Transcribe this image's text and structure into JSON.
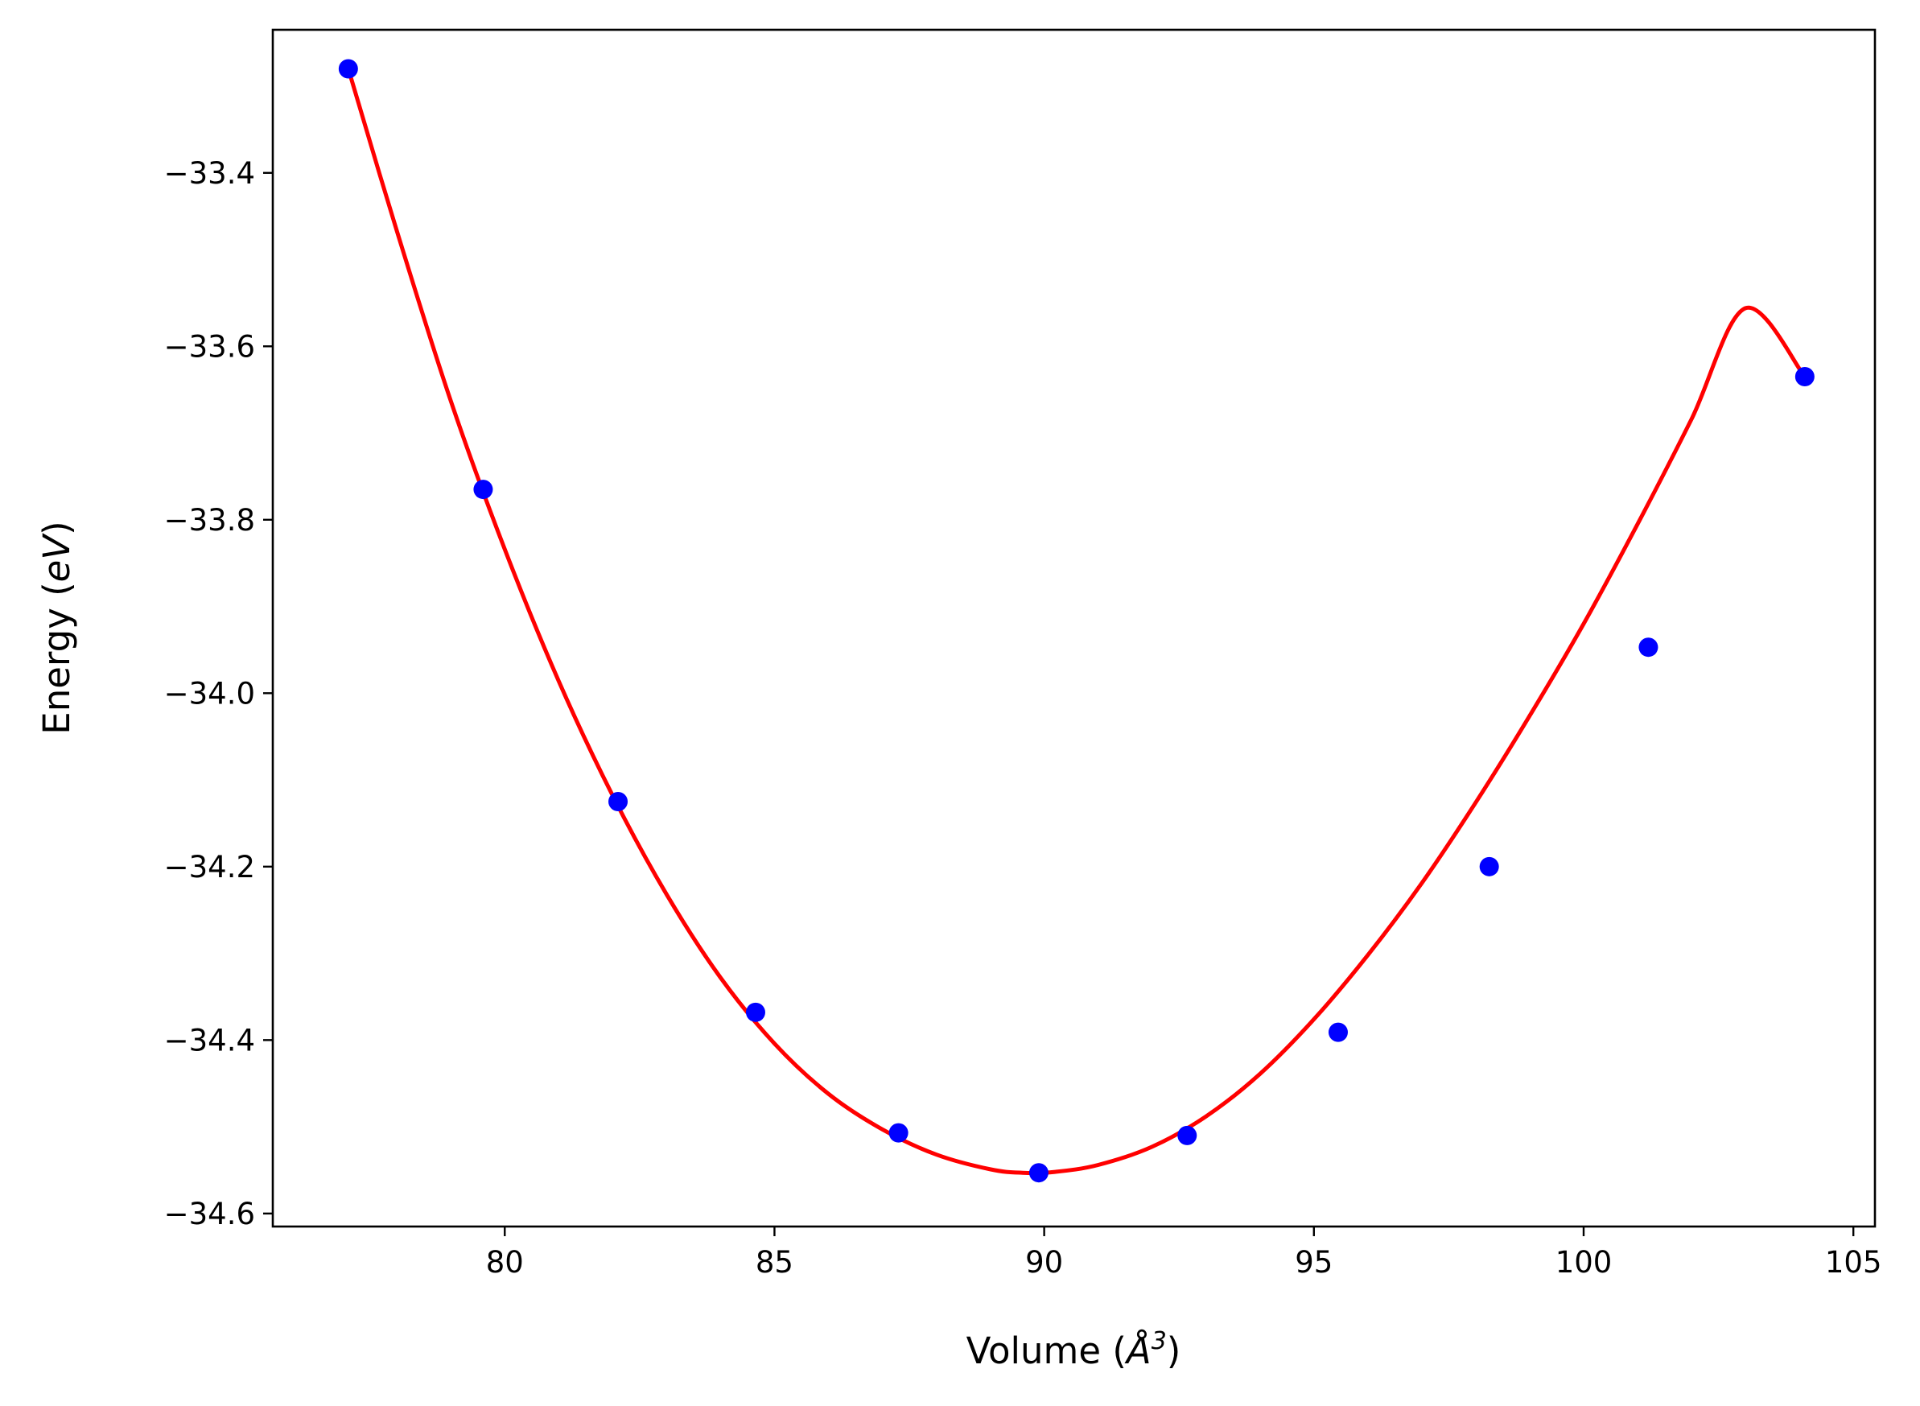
{
  "chart_data": {
    "type": "scatter",
    "title": "",
    "xlabel_parts": {
      "prefix": "Volume (",
      "symbol": "Å",
      "exponent": "3",
      "suffix": ")"
    },
    "ylabel_parts": {
      "prefix": "Energy (",
      "unit": "eV",
      "suffix": ")"
    },
    "xlim": [
      75.7,
      105.4
    ],
    "ylim": [
      -34.615,
      -33.235
    ],
    "x_ticks": [
      80,
      85,
      90,
      95,
      100,
      105
    ],
    "x_tick_labels": [
      "80",
      "85",
      "90",
      "95",
      "100",
      "105"
    ],
    "y_ticks": [
      -33.4,
      -33.6,
      -33.8,
      -34.0,
      -34.2,
      -34.4,
      -34.6
    ],
    "y_tick_labels": [
      "−33.4",
      "−33.6",
      "−33.8",
      "−34.0",
      "−34.2",
      "−34.4",
      "−34.6"
    ],
    "grid": false,
    "series": [
      {
        "kind": "points",
        "color": "#0000ff",
        "x": [
          77.1,
          79.6,
          82.1,
          84.65,
          87.3,
          89.9,
          92.65,
          95.45,
          98.25,
          101.2,
          104.1
        ],
        "y": [
          -33.28,
          -33.765,
          -34.125,
          -34.368,
          -34.507,
          -34.553,
          -34.51,
          -34.391,
          -34.2,
          -33.947,
          -33.635
        ]
      },
      {
        "kind": "fitted-curve",
        "color": "#ff0000",
        "x": [
          77.1,
          78.0,
          79.0,
          80.0,
          81.0,
          82.0,
          83.0,
          84.0,
          85.0,
          86.0,
          87.0,
          88.0,
          89.0,
          89.6,
          90.2,
          91.0,
          92.0,
          93.0,
          94.0,
          95.0,
          96.0,
          97.0,
          98.0,
          99.0,
          100.0,
          101.0,
          102.0,
          103.0,
          104.1
        ],
        "y": [
          -33.28,
          -33.467,
          -33.663,
          -33.834,
          -33.986,
          -34.118,
          -34.232,
          -34.328,
          -34.404,
          -34.462,
          -34.503,
          -34.532,
          -34.549,
          -34.553,
          -34.552,
          -34.544,
          -34.523,
          -34.488,
          -34.439,
          -34.376,
          -34.302,
          -34.219,
          -34.126,
          -34.026,
          -33.92,
          -33.805,
          -33.684,
          -33.556,
          -33.635
        ]
      }
    ]
  }
}
